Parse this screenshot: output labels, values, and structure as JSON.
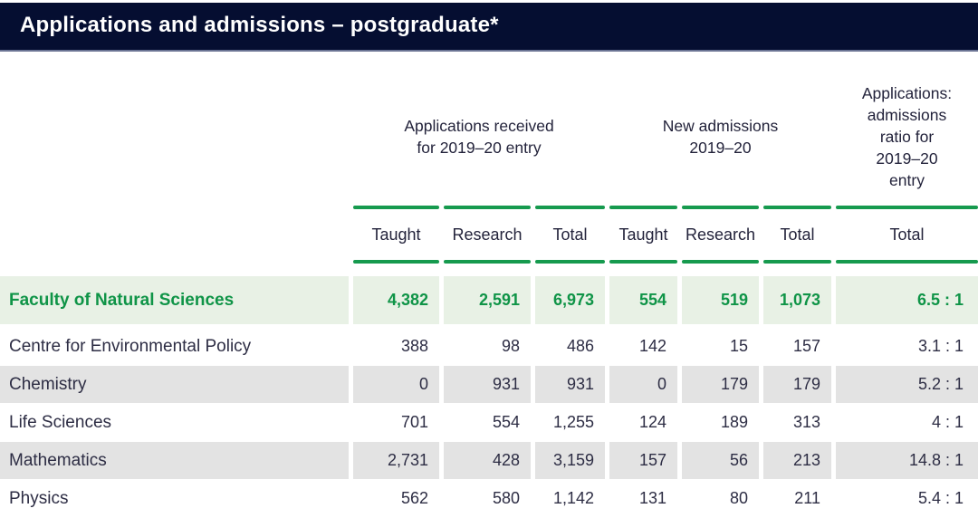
{
  "title": "Applications and admissions – postgraduate*",
  "colors": {
    "titlebar_bg": "#050e31",
    "accent_green": "#169a4e",
    "summary_bg": "#e8f1e5",
    "summary_text": "#0f9447",
    "shaded_row_bg": "#e3e3e3",
    "body_text": "#2d2d44"
  },
  "table": {
    "groups": [
      {
        "label": "Applications received\nfor  2019–20 entry"
      },
      {
        "label": "New admissions\n2019–20"
      },
      {
        "label": "Applications:\nadmissions\nratio for\n2019–20\nentry"
      }
    ],
    "subheaders": [
      "Taught",
      "Research",
      "Total",
      "Taught",
      "Research",
      "Total",
      "Total"
    ],
    "summary_row": {
      "label": "Faculty of Natural Sciences",
      "values": [
        "4,382",
        "2,591",
        "6,973",
        "554",
        "519",
        "1,073",
        "6.5 : 1"
      ]
    },
    "rows": [
      {
        "label": "Centre for Environmental Policy",
        "values": [
          "388",
          "98",
          "486",
          "142",
          "15",
          "157",
          "3.1 : 1"
        ]
      },
      {
        "label": "Chemistry",
        "values": [
          "0",
          "931",
          "931",
          "0",
          "179",
          "179",
          "5.2 : 1"
        ]
      },
      {
        "label": "Life Sciences",
        "values": [
          "701",
          "554",
          "1,255",
          "124",
          "189",
          "313",
          "4 : 1"
        ]
      },
      {
        "label": "Mathematics",
        "values": [
          "2,731",
          "428",
          "3,159",
          "157",
          "56",
          "213",
          "14.8 : 1"
        ]
      },
      {
        "label": "Physics",
        "values": [
          "562",
          "580",
          "1,142",
          "131",
          "80",
          "211",
          "5.4 : 1"
        ]
      }
    ]
  }
}
